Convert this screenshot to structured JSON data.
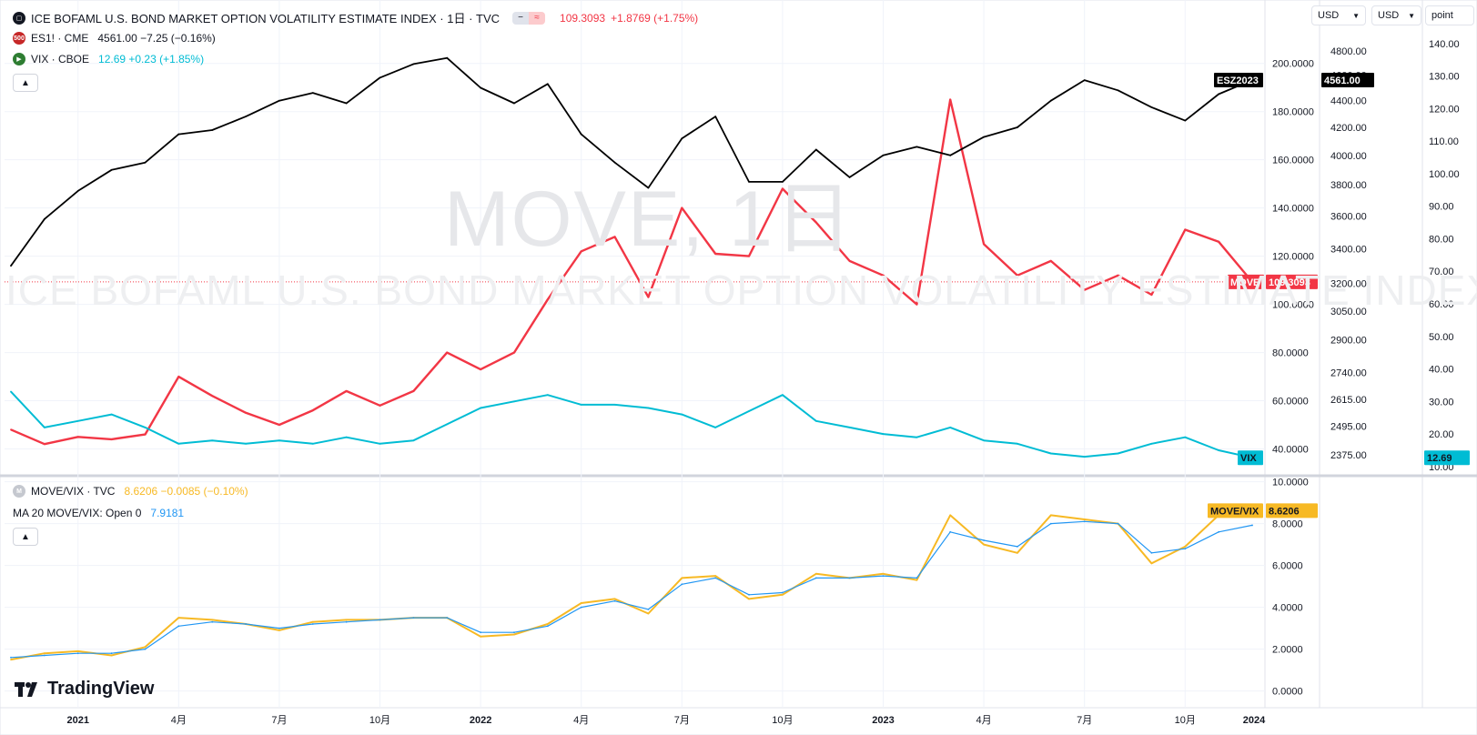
{
  "header": {
    "title": "ICE BOFAML U.S. BOND MARKET OPTION VOLATILITY ESTIMATE INDEX · 1日 · TVC",
    "price": "109.3093",
    "change": "+1.8769 (+1.75%)",
    "change_color": "#f23645"
  },
  "legend": {
    "es": {
      "badge": "500",
      "label": "ES1! · CME",
      "values": "4561.00 −7.25 (−0.16%)",
      "color": "#131722"
    },
    "vix": {
      "label": "VIX · CBOE",
      "values": "12.69 +0.23 (+1.85%)",
      "color": "#00bcd4"
    },
    "ratio": {
      "badge": "M",
      "label": "MOVE/VIX · TVC",
      "values": "8.6206 −0.0085 (−0.10%)",
      "color": "#f7b924"
    },
    "ma": {
      "label": "MA 20 MOVE/VIX: Open 0",
      "value": "7.9181",
      "color": "#2196f3"
    }
  },
  "controls": {
    "currency_1": "USD",
    "currency_2": "USD",
    "unit": "point",
    "collapse_icon": "chevron-up-icon"
  },
  "watermark": {
    "symbol": "MOVE, 1日",
    "name": "ICE BOFAML U.S. BOND MARKET OPTION VOLATILITY ESTIMATE INDEX"
  },
  "branding": {
    "logo_text": "TradingView"
  },
  "colors": {
    "move": "#f23645",
    "es": "#000000",
    "vix": "#00bcd4",
    "ratio": "#f7b924",
    "ma": "#2196f3",
    "grid": "#f0f3fa"
  },
  "chart_data": [
    {
      "type": "line",
      "title": "ICE BOFAML U.S. BOND MARKET OPTION VOLATILITY ESTIMATE INDEX · 1日 · TVC",
      "x_tick_labels": [
        "2021",
        "4月",
        "7月",
        "10月",
        "2022",
        "4月",
        "7月",
        "10月",
        "2023",
        "4月",
        "7月",
        "10月",
        "2024"
      ],
      "x": [
        "2020-11",
        "2020-12",
        "2021-01",
        "2021-02",
        "2021-03",
        "2021-04",
        "2021-05",
        "2021-06",
        "2021-07",
        "2021-08",
        "2021-09",
        "2021-10",
        "2021-11",
        "2021-12",
        "2022-01",
        "2022-02",
        "2022-03",
        "2022-04",
        "2022-05",
        "2022-06",
        "2022-07",
        "2022-08",
        "2022-09",
        "2022-10",
        "2022-11",
        "2022-12",
        "2023-01",
        "2023-02",
        "2023-03",
        "2023-04",
        "2023-05",
        "2023-06",
        "2023-07",
        "2023-08",
        "2023-09",
        "2023-10",
        "2023-11",
        "2023-12"
      ],
      "axes": {
        "move_axis": {
          "ticks": [
            "200.0000",
            "180.0000",
            "160.0000",
            "140.0000",
            "120.0000",
            "100.0000",
            "80.0000",
            "60.0000",
            "40.0000"
          ],
          "ylim": [
            30,
            215
          ]
        },
        "es_axis": {
          "ticks": [
            "4800.00",
            "4600.00",
            "4400.00",
            "4200.00",
            "4000.00",
            "3800.00",
            "3600.00",
            "3400.00",
            "3200.00",
            "3050.00",
            "2900.00",
            "2740.00",
            "2615.00",
            "2495.00",
            "2375.00"
          ],
          "scale": "log",
          "ylim": [
            2300,
            5000
          ]
        },
        "vix_axis": {
          "ticks": [
            "140.00",
            "130.00",
            "120.00",
            "110.00",
            "100.00",
            "90.00",
            "80.00",
            "70.00",
            "60.00",
            "50.00",
            "40.00",
            "30.00",
            "20.00",
            "10.00"
          ],
          "ylim": [
            8,
            145
          ]
        }
      },
      "series": [
        {
          "name": "MOVE",
          "axis": "move_axis",
          "last_label": "109.3093",
          "values": [
            48,
            42,
            45,
            44,
            46,
            70,
            62,
            55,
            50,
            56,
            64,
            58,
            64,
            80,
            73,
            80,
            102,
            122,
            128,
            103,
            140,
            121,
            120,
            148,
            134,
            118,
            112,
            100,
            185,
            125,
            112,
            118,
            106,
            112,
            104,
            131,
            126,
            109.31
          ]
        },
        {
          "name": "ES1!",
          "axis": "es_axis",
          "last_label": "ESZ2023",
          "values": [
            3300,
            3580,
            3760,
            3900,
            3950,
            4150,
            4180,
            4280,
            4400,
            4460,
            4380,
            4580,
            4690,
            4740,
            4500,
            4380,
            4530,
            4150,
            3950,
            3780,
            4120,
            4280,
            3820,
            3820,
            4040,
            3850,
            4000,
            4060,
            4000,
            4130,
            4200,
            4400,
            4560,
            4480,
            4350,
            4250,
            4450,
            4561
          ]
        },
        {
          "name": "VIX",
          "axis": "vix_axis",
          "last_label": "VIX",
          "values": [
            33,
            22,
            24,
            26,
            22,
            17,
            18,
            17,
            18,
            17,
            19,
            17,
            18,
            23,
            28,
            30,
            32,
            29,
            29,
            28,
            26,
            22,
            27,
            32,
            24,
            22,
            20,
            19,
            22,
            18,
            17,
            14,
            13,
            14,
            17,
            19,
            15,
            12.69
          ]
        }
      ]
    },
    {
      "type": "line",
      "title": "MOVE/VIX · TVC",
      "axes": {
        "ratio_axis": {
          "ticks": [
            "10.0000",
            "8.0000",
            "6.0000",
            "4.0000",
            "2.0000",
            "0.0000"
          ],
          "ylim": [
            -0.8,
            10.2
          ]
        }
      },
      "series": [
        {
          "name": "MOVE/VIX",
          "axis": "ratio_axis",
          "last_label": "8.6206",
          "values": [
            1.5,
            1.8,
            1.9,
            1.7,
            2.1,
            3.5,
            3.4,
            3.2,
            2.9,
            3.3,
            3.4,
            3.4,
            3.5,
            3.5,
            2.6,
            2.7,
            3.2,
            4.2,
            4.4,
            3.7,
            5.4,
            5.5,
            4.4,
            4.6,
            5.6,
            5.4,
            5.6,
            5.3,
            8.4,
            7.0,
            6.6,
            8.4,
            8.2,
            8.0,
            6.1,
            6.9,
            8.4,
            8.62
          ]
        },
        {
          "name": "MA 20 MOVE/VIX: Open 0",
          "axis": "ratio_axis",
          "last_label": "7.9181",
          "values": [
            1.6,
            1.7,
            1.8,
            1.8,
            2.0,
            3.1,
            3.3,
            3.2,
            3.0,
            3.2,
            3.3,
            3.4,
            3.5,
            3.5,
            2.8,
            2.8,
            3.1,
            4.0,
            4.3,
            3.9,
            5.1,
            5.4,
            4.6,
            4.7,
            5.4,
            5.4,
            5.5,
            5.4,
            7.6,
            7.2,
            6.9,
            8.0,
            8.1,
            8.0,
            6.6,
            6.8,
            7.6,
            7.92
          ]
        }
      ]
    }
  ]
}
